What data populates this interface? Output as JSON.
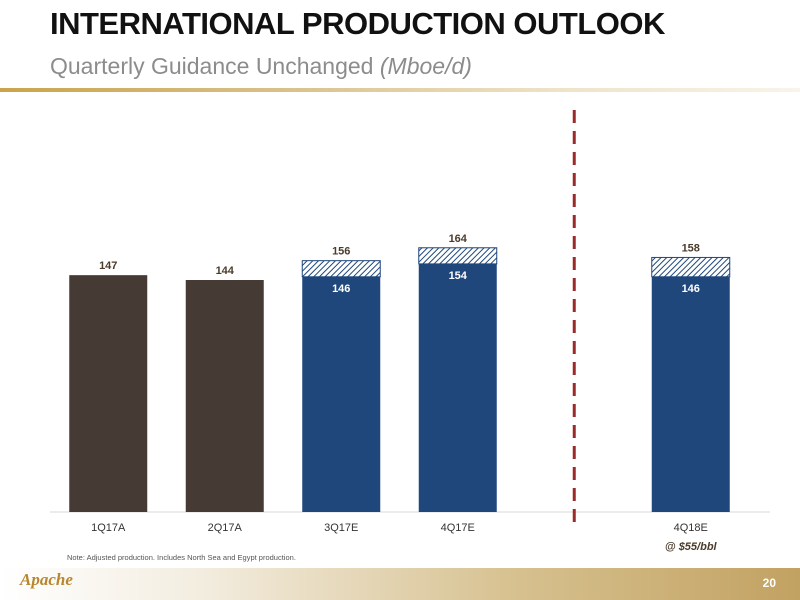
{
  "header": {
    "title": "INTERNATIONAL PRODUCTION OUTLOOK",
    "subtitle": "Quarterly Guidance Unchanged",
    "subtitle_unit": "(Mboe/d)"
  },
  "chart_data": {
    "type": "bar",
    "stacked": true,
    "categories": [
      "1Q17A",
      "2Q17A",
      "3Q17E",
      "4Q17E",
      "",
      "4Q18E"
    ],
    "category_sublabels": [
      "",
      "",
      "",
      "",
      "",
      "@ $55/bbl"
    ],
    "ylim": [
      0,
      180
    ],
    "grid": false,
    "legend": "none",
    "series": [
      {
        "kind": "actual",
        "color": "#453a34",
        "values": [
          147,
          144,
          null,
          null,
          null,
          null
        ]
      },
      {
        "kind": "estimate",
        "color": "#1f477b",
        "values": [
          null,
          null,
          146,
          154,
          null,
          146
        ]
      },
      {
        "kind": "estimate-upside",
        "pattern": "hatched",
        "color": "#1f477b",
        "values": [
          null,
          null,
          10,
          10,
          null,
          12
        ]
      }
    ],
    "total_labels": [
      "147",
      "144",
      "156",
      "164",
      "",
      "158"
    ],
    "inner_labels": [
      "",
      "",
      "146",
      "154",
      "",
      "146"
    ],
    "divider": {
      "style": "dashed",
      "color": "#9b2a2a",
      "between": [
        "4Q17E",
        "4Q18E"
      ]
    }
  },
  "footer": {
    "note": "Note: Adjusted production.  Includes North Sea and Egypt production.",
    "logo_text": "Apache",
    "page_number": "20"
  }
}
